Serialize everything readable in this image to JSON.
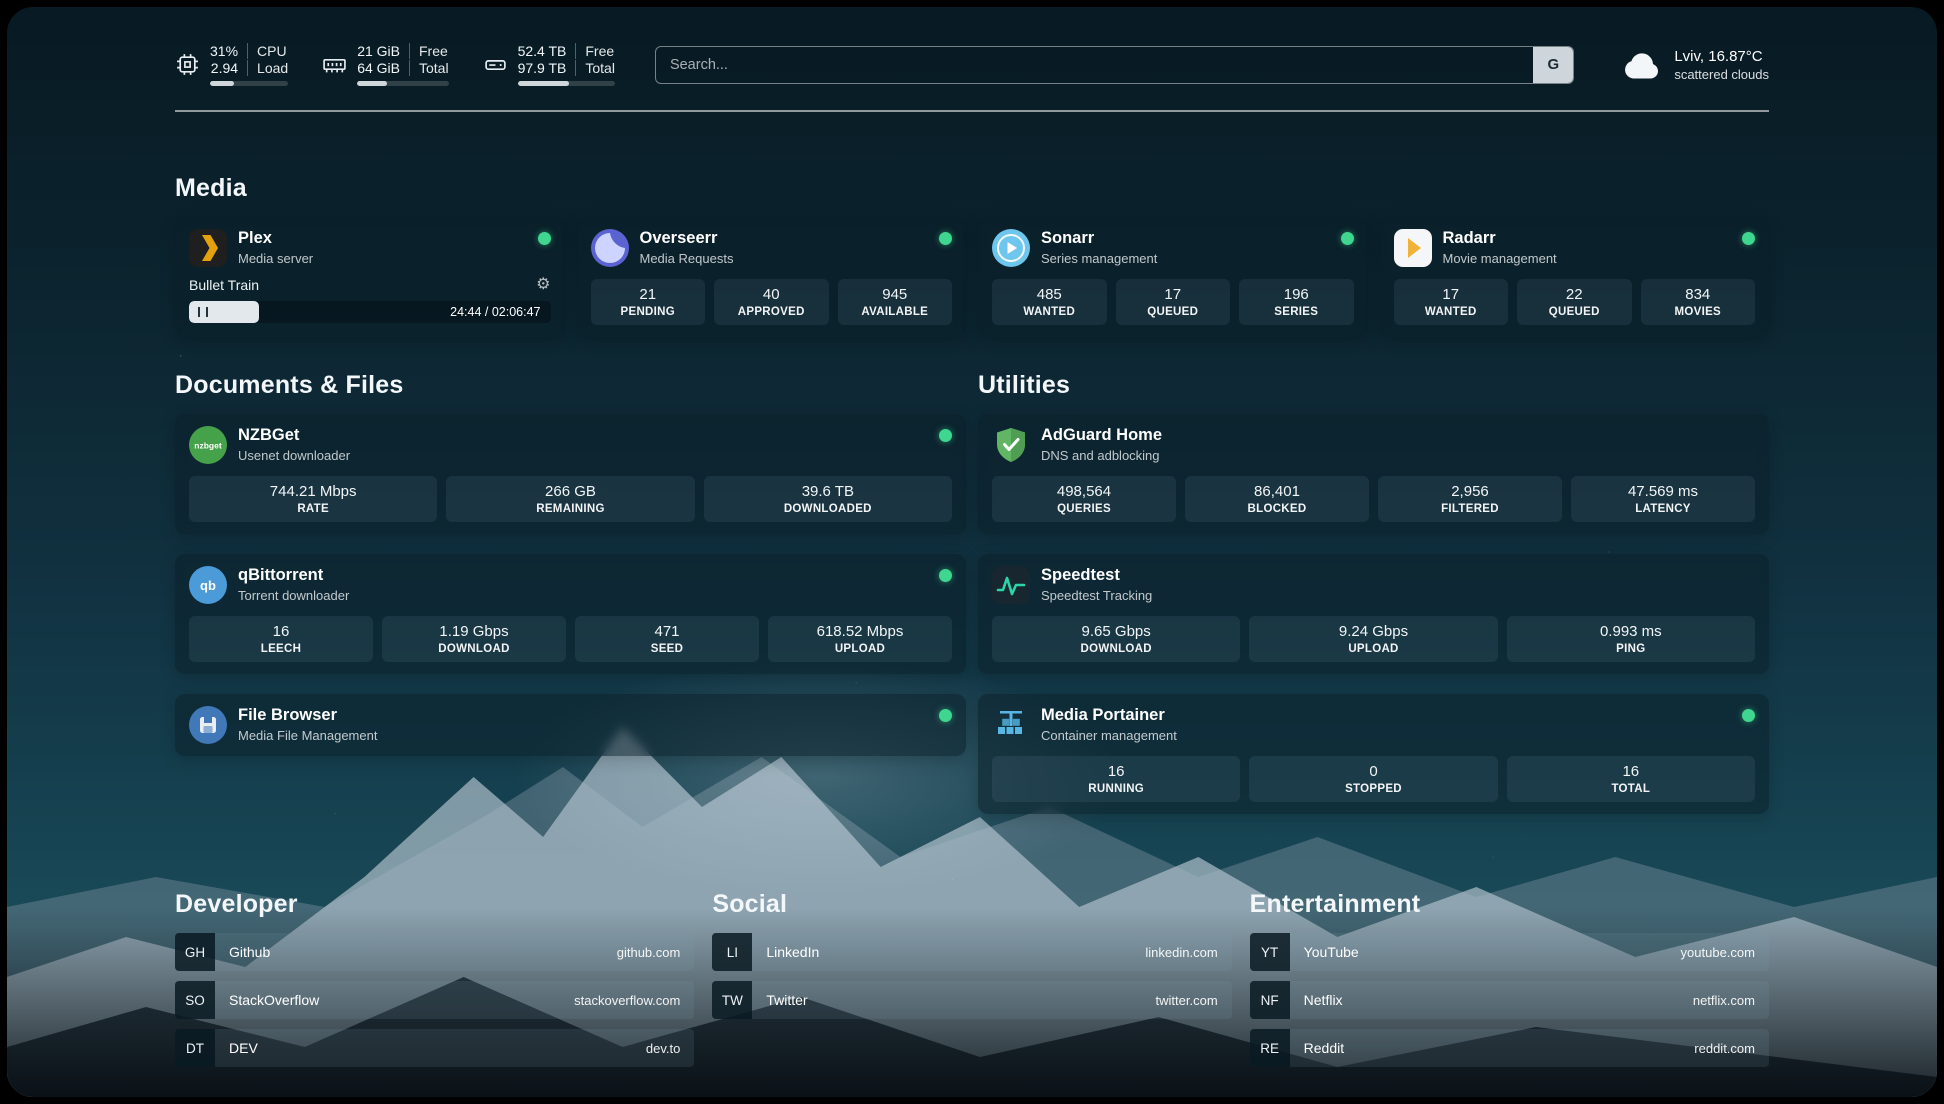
{
  "header": {
    "cpu": {
      "value_top": "31%",
      "label_top": "CPU",
      "value_bottom": "2.94",
      "label_bottom": "Load",
      "progress": 31
    },
    "ram": {
      "value_top": "21 GiB",
      "label_top": "Free",
      "value_bottom": "64 GiB",
      "label_bottom": "Total",
      "progress": 33
    },
    "disk": {
      "value_top": "52.4 TB",
      "label_top": "Free",
      "value_bottom": "97.9 TB",
      "label_bottom": "Total",
      "progress": 53
    },
    "search": {
      "placeholder": "Search...",
      "button_label": "G"
    },
    "weather": {
      "location": "Lviv, 16.87°C",
      "condition": "scattered clouds"
    }
  },
  "sections": {
    "media": {
      "title": "Media",
      "apps": [
        {
          "name": "Plex",
          "subtitle": "Media server",
          "now_playing": {
            "title": "Bullet Train",
            "time": "24:44 / 02:06:47",
            "progress": 19.5
          }
        },
        {
          "name": "Overseerr",
          "subtitle": "Media Requests",
          "stats": [
            {
              "value": "21",
              "label": "PENDING"
            },
            {
              "value": "40",
              "label": "APPROVED"
            },
            {
              "value": "945",
              "label": "AVAILABLE"
            }
          ]
        },
        {
          "name": "Sonarr",
          "subtitle": "Series management",
          "stats": [
            {
              "value": "485",
              "label": "WANTED"
            },
            {
              "value": "17",
              "label": "QUEUED"
            },
            {
              "value": "196",
              "label": "SERIES"
            }
          ]
        },
        {
          "name": "Radarr",
          "subtitle": "Movie management",
          "stats": [
            {
              "value": "17",
              "label": "WANTED"
            },
            {
              "value": "22",
              "label": "QUEUED"
            },
            {
              "value": "834",
              "label": "MOVIES"
            }
          ]
        }
      ]
    },
    "documents": {
      "title": "Documents & Files",
      "apps": [
        {
          "name": "NZBGet",
          "subtitle": "Usenet downloader",
          "stats": [
            {
              "value": "744.21 Mbps",
              "label": "RATE"
            },
            {
              "value": "266 GB",
              "label": "REMAINING"
            },
            {
              "value": "39.6 TB",
              "label": "DOWNLOADED"
            }
          ]
        },
        {
          "name": "qBittorrent",
          "subtitle": "Torrent downloader",
          "stats": [
            {
              "value": "16",
              "label": "LEECH"
            },
            {
              "value": "1.19 Gbps",
              "label": "DOWNLOAD"
            },
            {
              "value": "471",
              "label": "SEED"
            },
            {
              "value": "618.52 Mbps",
              "label": "UPLOAD"
            }
          ]
        },
        {
          "name": "File Browser",
          "subtitle": "Media File Management",
          "stats": []
        }
      ]
    },
    "utilities": {
      "title": "Utilities",
      "apps": [
        {
          "name": "AdGuard Home",
          "subtitle": "DNS and adblocking",
          "stats": [
            {
              "value": "498,564",
              "label": "QUERIES"
            },
            {
              "value": "86,401",
              "label": "BLOCKED"
            },
            {
              "value": "2,956",
              "label": "FILTERED"
            },
            {
              "value": "47.569 ms",
              "label": "LATENCY"
            }
          ]
        },
        {
          "name": "Speedtest",
          "subtitle": "Speedtest Tracking",
          "stats": [
            {
              "value": "9.65 Gbps",
              "label": "DOWNLOAD"
            },
            {
              "value": "9.24 Gbps",
              "label": "UPLOAD"
            },
            {
              "value": "0.993 ms",
              "label": "PING"
            }
          ]
        },
        {
          "name": "Media Portainer",
          "subtitle": "Container management",
          "stats": [
            {
              "value": "16",
              "label": "RUNNING"
            },
            {
              "value": "0",
              "label": "STOPPED"
            },
            {
              "value": "16",
              "label": "TOTAL"
            }
          ]
        }
      ]
    },
    "bookmarks": [
      {
        "title": "Developer",
        "items": [
          {
            "abbr": "GH",
            "name": "Github",
            "url": "github.com"
          },
          {
            "abbr": "SO",
            "name": "StackOverflow",
            "url": "stackoverflow.com"
          },
          {
            "abbr": "DT",
            "name": "DEV",
            "url": "dev.to"
          }
        ]
      },
      {
        "title": "Social",
        "items": [
          {
            "abbr": "LI",
            "name": "LinkedIn",
            "url": "linkedin.com"
          },
          {
            "abbr": "TW",
            "name": "Twitter",
            "url": "twitter.com"
          }
        ]
      },
      {
        "title": "Entertainment",
        "items": [
          {
            "abbr": "YT",
            "name": "YouTube",
            "url": "youtube.com"
          },
          {
            "abbr": "NF",
            "name": "Netflix",
            "url": "netflix.com"
          },
          {
            "abbr": "RE",
            "name": "Reddit",
            "url": "reddit.com"
          }
        ]
      }
    ]
  },
  "colors": {
    "status_online": "#3fd68f",
    "plex": "#e5a00d",
    "overseerr": "#5b63d3",
    "sonarr": "#6ec6ee",
    "radarr": "#efb23a",
    "nzbget": "#46a24a",
    "qbittorrent": "#4b9bd8",
    "adguard": "#62b565",
    "speedtest": "#2dd4a7",
    "filebrowser": "#4179b8",
    "portainer": "#58b6e4"
  }
}
